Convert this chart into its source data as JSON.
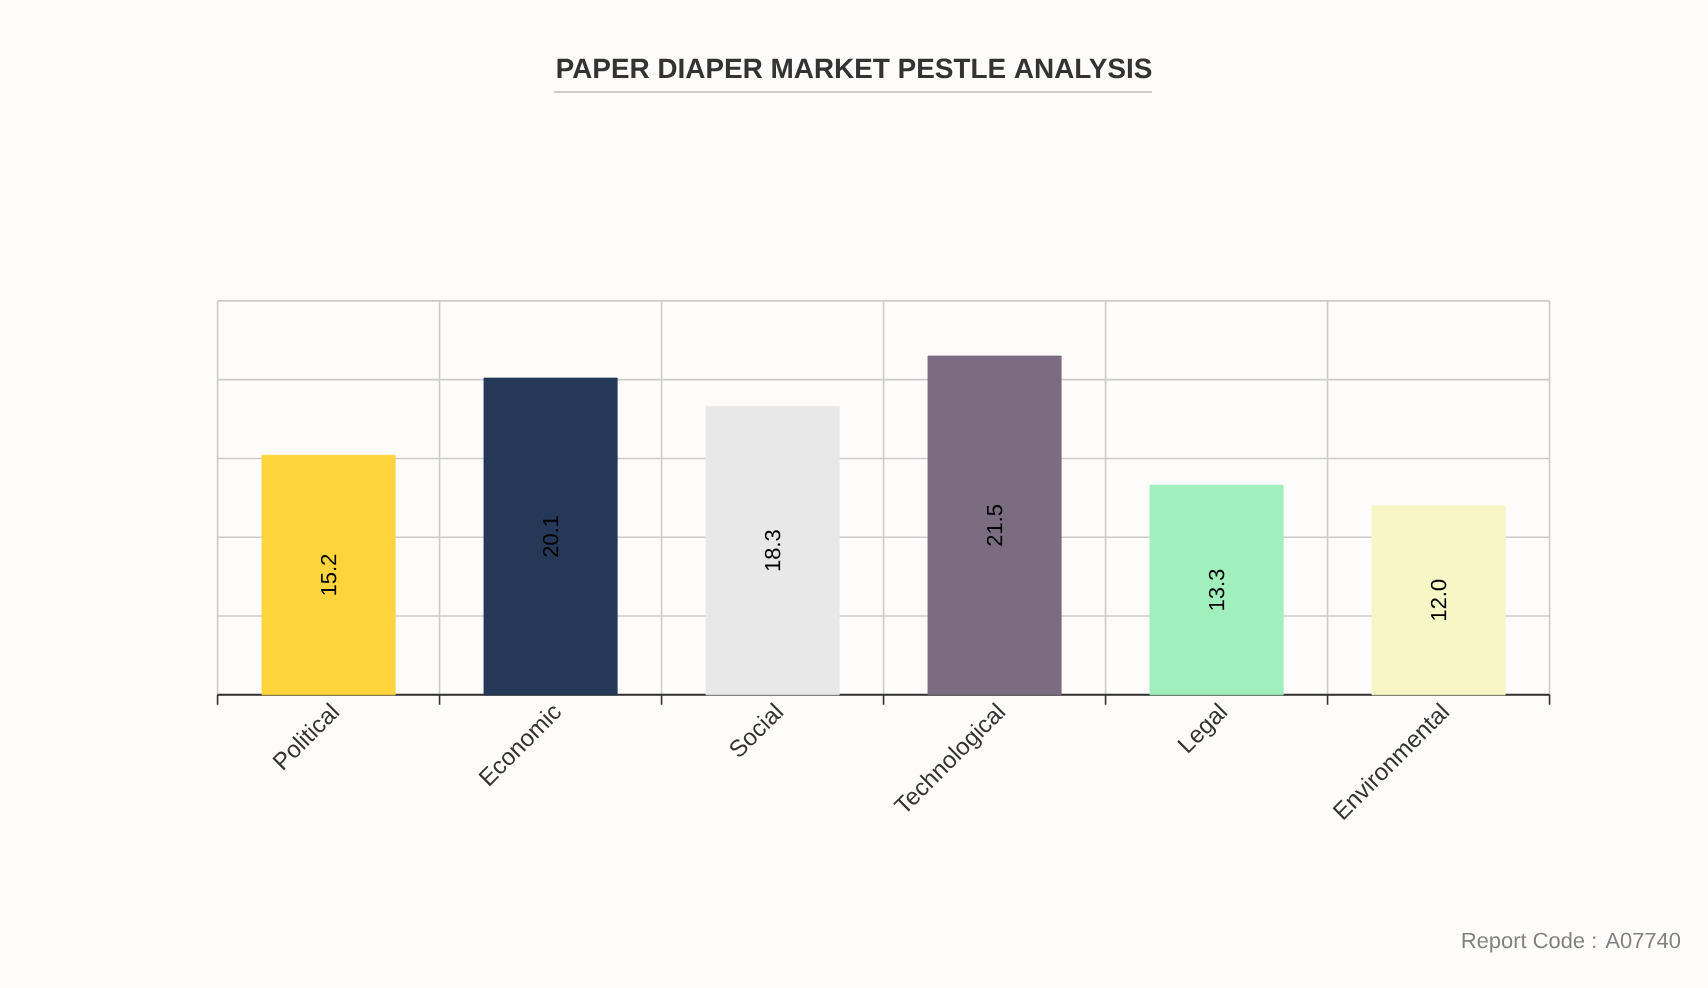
{
  "chart_data": {
    "type": "bar",
    "title": "PAPER DIAPER MARKET PESTLE ANALYSIS",
    "categories": [
      "Political",
      "Economic",
      "Social",
      "Technological",
      "Legal",
      "Environmental"
    ],
    "values": [
      15.2,
      20.1,
      18.3,
      21.5,
      13.3,
      12.0
    ],
    "value_labels": [
      "15.2",
      "20.1",
      "18.3",
      "21.5",
      "13.3",
      "12.0"
    ],
    "colors": [
      "#fdd43c",
      "#253858",
      "#e8e8e8",
      "#7c6c82",
      "#a1efbd",
      "#f7f6c5"
    ],
    "ylim": [
      0,
      25
    ],
    "yticks": [
      {
        "value": 0,
        "label": null
      },
      {
        "value": 5,
        "label": null
      },
      {
        "value": 10,
        "label": null
      },
      {
        "value": 15,
        "label": null
      },
      {
        "value": 20,
        "label": null
      },
      {
        "value": 25,
        "label": null
      }
    ],
    "grid": true,
    "tick_labels": "x",
    "annotations": [
      "Report Code : A07740"
    ]
  }
}
